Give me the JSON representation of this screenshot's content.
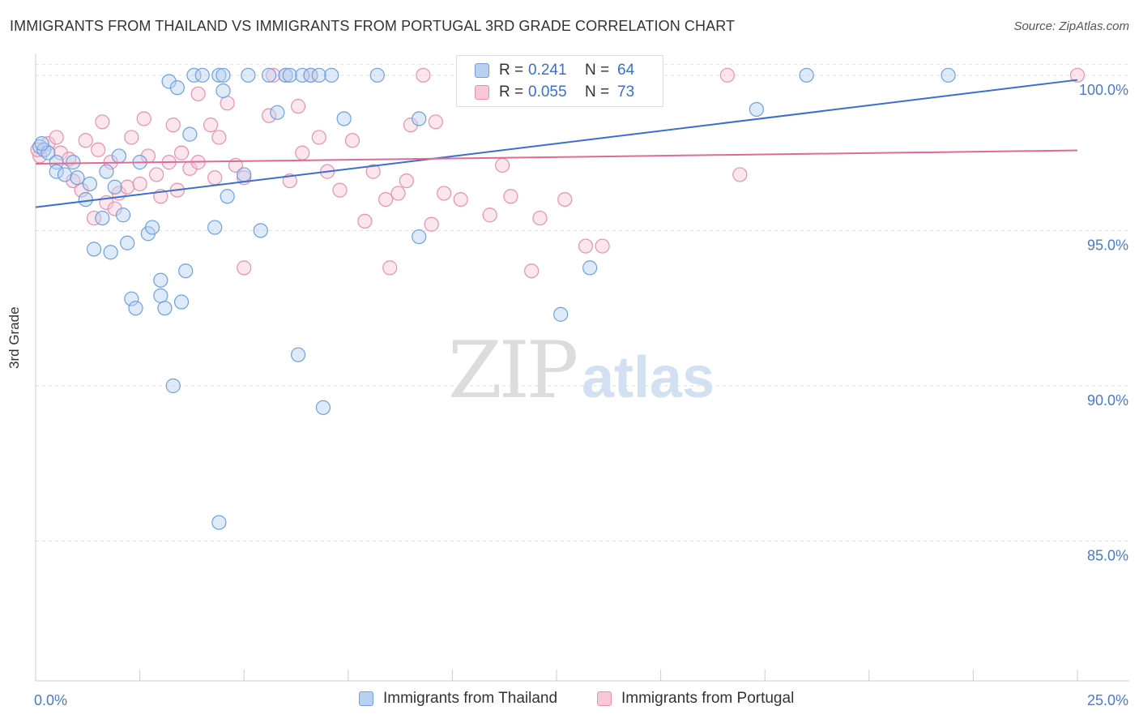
{
  "title": "IMMIGRANTS FROM THAILAND VS IMMIGRANTS FROM PORTUGAL 3RD GRADE CORRELATION CHART",
  "source": "Source: ZipAtlas.com",
  "watermark": {
    "zip": "ZIP",
    "atlas": "atlas"
  },
  "colors": {
    "thailand_fill": "#b8d0f2",
    "thailand_stroke": "#6f9fe0",
    "thailand_line": "#3a6fd0",
    "portugal_fill": "#f8c8d8",
    "portugal_stroke": "#e890ae",
    "portugal_line": "#e06a94",
    "tick_label": "#4a7acc",
    "grid": "#dddddd"
  },
  "legend_top": {
    "rows": [
      {
        "r_label": "R =",
        "r_value": "0.241",
        "n_label": "N =",
        "n_value": "64"
      },
      {
        "r_label": "R =",
        "r_value": "0.055",
        "n_label": "N =",
        "n_value": "73"
      }
    ]
  },
  "legend_bottom": [
    "Immigrants from Thailand",
    "Immigrants from Portugal"
  ],
  "chart_data": {
    "type": "scatter",
    "title": "IMMIGRANTS FROM THAILAND VS IMMIGRANTS FROM PORTUGAL 3RD GRADE CORRELATION CHART",
    "xlabel": "",
    "ylabel": "3rd Grade",
    "xlim": [
      0,
      25
    ],
    "ylim": [
      80.5,
      100.7
    ],
    "x_tick_labels": [
      "0.0%",
      "25.0%"
    ],
    "y_ticks": [
      85,
      90,
      95,
      100
    ],
    "y_tick_labels": [
      "85.0%",
      "90.0%",
      "95.0%",
      "100.0%"
    ],
    "grid": true,
    "legend_position": "top-center",
    "series": [
      {
        "name": "Immigrants from Thailand",
        "r": 0.241,
        "n": 64,
        "trend": {
          "x": [
            0,
            25
          ],
          "y": [
            95.75,
            99.85
          ]
        },
        "points": [
          [
            0.1,
            97.7
          ],
          [
            0.2,
            97.6
          ],
          [
            0.3,
            97.5
          ],
          [
            0.5,
            97.2
          ],
          [
            0.5,
            96.9
          ],
          [
            0.7,
            96.8
          ],
          [
            0.9,
            97.2
          ],
          [
            1.0,
            96.7
          ],
          [
            1.2,
            96.0
          ],
          [
            1.3,
            96.5
          ],
          [
            1.6,
            95.4
          ],
          [
            1.7,
            96.9
          ],
          [
            1.4,
            94.4
          ],
          [
            1.8,
            94.3
          ],
          [
            1.9,
            96.4
          ],
          [
            2.0,
            97.4
          ],
          [
            2.1,
            95.5
          ],
          [
            2.2,
            94.6
          ],
          [
            2.5,
            97.2
          ],
          [
            2.7,
            94.9
          ],
          [
            2.8,
            95.1
          ],
          [
            3.0,
            93.4
          ],
          [
            2.3,
            92.8
          ],
          [
            2.4,
            92.5
          ],
          [
            3.0,
            92.9
          ],
          [
            3.1,
            92.5
          ],
          [
            3.3,
            90.0
          ],
          [
            3.5,
            92.7
          ],
          [
            3.6,
            93.7
          ],
          [
            3.7,
            98.1
          ],
          [
            3.2,
            99.8
          ],
          [
            3.4,
            99.6
          ],
          [
            3.8,
            100.0
          ],
          [
            4.0,
            100.0
          ],
          [
            4.3,
            95.1
          ],
          [
            4.4,
            100.0
          ],
          [
            4.5,
            100.0
          ],
          [
            4.5,
            99.5
          ],
          [
            4.6,
            96.1
          ],
          [
            4.4,
            85.6
          ],
          [
            5.1,
            100.0
          ],
          [
            5.0,
            96.8
          ],
          [
            5.4,
            95.0
          ],
          [
            5.6,
            100.0
          ],
          [
            5.8,
            98.8
          ],
          [
            6.0,
            100.0
          ],
          [
            6.1,
            100.0
          ],
          [
            6.3,
            91.0
          ],
          [
            6.4,
            100.0
          ],
          [
            6.6,
            100.0
          ],
          [
            6.9,
            89.3
          ],
          [
            6.8,
            100.0
          ],
          [
            7.1,
            100.0
          ],
          [
            7.4,
            98.6
          ],
          [
            8.2,
            100.0
          ],
          [
            9.2,
            98.6
          ],
          [
            9.2,
            94.8
          ],
          [
            11.0,
            100.0
          ],
          [
            12.6,
            92.3
          ],
          [
            13.3,
            93.8
          ],
          [
            17.3,
            98.9
          ],
          [
            18.5,
            100.0
          ],
          [
            21.9,
            100.0
          ],
          [
            0.15,
            97.8
          ]
        ]
      },
      {
        "name": "Immigrants from Portugal",
        "r": 0.055,
        "n": 73,
        "trend": {
          "x": [
            0,
            25
          ],
          "y": [
            97.15,
            97.58
          ]
        },
        "points": [
          [
            0.1,
            97.4
          ],
          [
            0.3,
            97.8
          ],
          [
            0.5,
            98.0
          ],
          [
            0.6,
            97.5
          ],
          [
            0.8,
            97.3
          ],
          [
            0.9,
            96.6
          ],
          [
            1.1,
            96.3
          ],
          [
            1.2,
            97.9
          ],
          [
            1.4,
            95.4
          ],
          [
            1.5,
            97.6
          ],
          [
            1.6,
            98.5
          ],
          [
            1.7,
            95.9
          ],
          [
            1.8,
            97.2
          ],
          [
            1.9,
            95.7
          ],
          [
            2.0,
            96.2
          ],
          [
            2.2,
            96.4
          ],
          [
            2.3,
            98.0
          ],
          [
            2.5,
            96.5
          ],
          [
            2.6,
            98.6
          ],
          [
            2.7,
            97.4
          ],
          [
            2.9,
            96.8
          ],
          [
            3.0,
            96.1
          ],
          [
            3.2,
            97.2
          ],
          [
            3.3,
            98.4
          ],
          [
            3.4,
            96.3
          ],
          [
            3.5,
            97.5
          ],
          [
            3.7,
            97.0
          ],
          [
            3.9,
            97.2
          ],
          [
            3.9,
            99.4
          ],
          [
            4.2,
            98.4
          ],
          [
            4.3,
            96.7
          ],
          [
            4.4,
            98.0
          ],
          [
            4.6,
            99.1
          ],
          [
            4.8,
            97.1
          ],
          [
            5.0,
            96.7
          ],
          [
            5.0,
            93.8
          ],
          [
            5.6,
            98.7
          ],
          [
            5.7,
            100.0
          ],
          [
            6.0,
            100.0
          ],
          [
            6.1,
            96.6
          ],
          [
            6.3,
            99.0
          ],
          [
            6.4,
            97.5
          ],
          [
            6.6,
            100.0
          ],
          [
            6.8,
            98.0
          ],
          [
            7.0,
            96.9
          ],
          [
            7.3,
            96.3
          ],
          [
            7.6,
            97.9
          ],
          [
            7.9,
            95.3
          ],
          [
            8.1,
            96.9
          ],
          [
            8.4,
            96.0
          ],
          [
            8.5,
            93.8
          ],
          [
            8.7,
            96.2
          ],
          [
            8.9,
            96.6
          ],
          [
            9.0,
            98.4
          ],
          [
            9.3,
            100.0
          ],
          [
            9.5,
            95.2
          ],
          [
            9.6,
            98.5
          ],
          [
            9.8,
            96.2
          ],
          [
            10.2,
            96.0
          ],
          [
            10.9,
            95.5
          ],
          [
            11.2,
            97.1
          ],
          [
            11.4,
            96.1
          ],
          [
            11.9,
            93.7
          ],
          [
            12.1,
            95.4
          ],
          [
            12.3,
            100.0
          ],
          [
            12.7,
            96.0
          ],
          [
            13.2,
            94.5
          ],
          [
            13.6,
            94.5
          ],
          [
            14.1,
            100.0
          ],
          [
            16.6,
            100.0
          ],
          [
            16.9,
            96.8
          ],
          [
            25.0,
            100.0
          ],
          [
            0.05,
            97.6
          ]
        ]
      }
    ]
  }
}
